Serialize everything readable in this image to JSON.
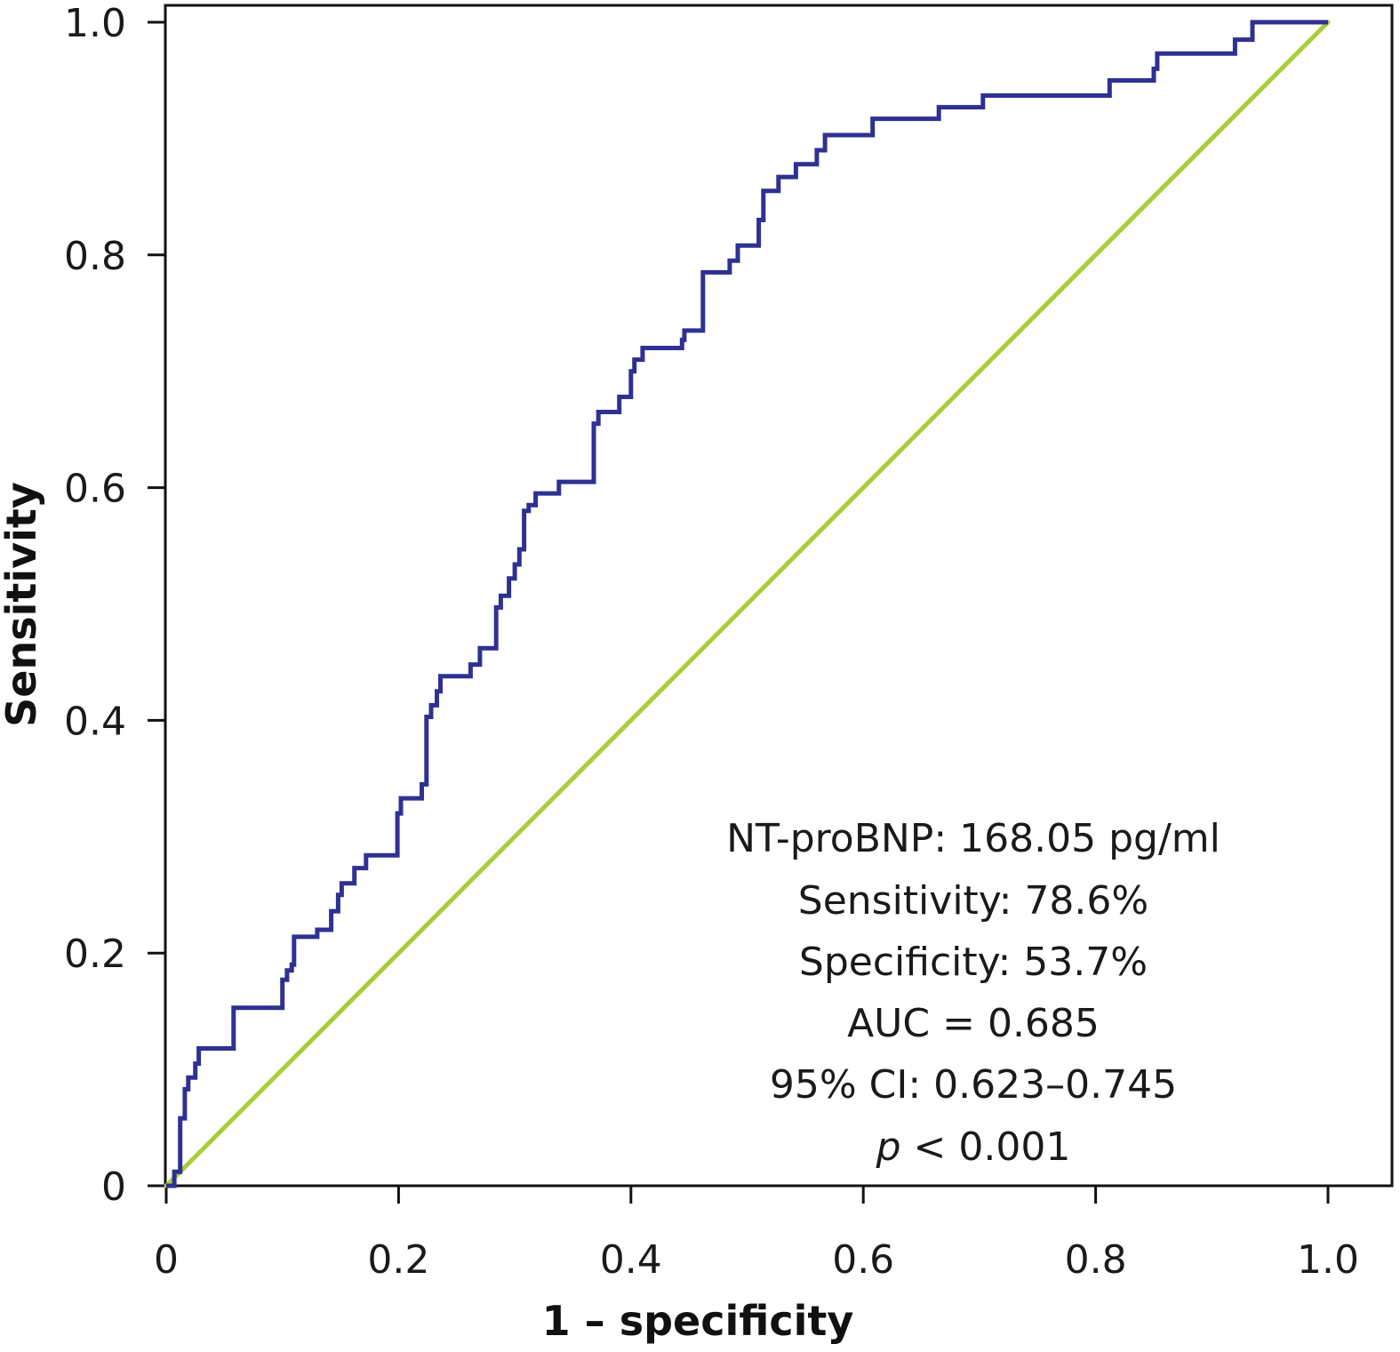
{
  "chart_data": {
    "type": "line",
    "title": "",
    "xlabel": "1 – specificity",
    "ylabel": "Sensitivity",
    "xlim": [
      0,
      1
    ],
    "ylim": [
      0,
      1
    ],
    "x_ticks": [
      0,
      0.2,
      0.4,
      0.6,
      0.8,
      1.0
    ],
    "x_tick_labels": [
      "0",
      "0.2",
      "0.4",
      "0.6",
      "0.8",
      "1.0"
    ],
    "y_ticks": [
      0,
      0.2,
      0.4,
      0.6,
      0.8,
      1.0
    ],
    "y_tick_labels": [
      "0",
      "0.2",
      "0.4",
      "0.6",
      "0.8",
      "1.0"
    ],
    "grid": false,
    "series": [
      {
        "name": "NT-proBNP ROC curve",
        "color": "#2e3192",
        "step": true,
        "points": [
          [
            0.0,
            0.0
          ],
          [
            0.007,
            0.0
          ],
          [
            0.007,
            0.012
          ],
          [
            0.012,
            0.012
          ],
          [
            0.012,
            0.058
          ],
          [
            0.016,
            0.058
          ],
          [
            0.016,
            0.083
          ],
          [
            0.019,
            0.083
          ],
          [
            0.019,
            0.093
          ],
          [
            0.025,
            0.093
          ],
          [
            0.025,
            0.105
          ],
          [
            0.028,
            0.105
          ],
          [
            0.028,
            0.118
          ],
          [
            0.058,
            0.118
          ],
          [
            0.058,
            0.153
          ],
          [
            0.1,
            0.153
          ],
          [
            0.1,
            0.177
          ],
          [
            0.104,
            0.177
          ],
          [
            0.104,
            0.185
          ],
          [
            0.108,
            0.185
          ],
          [
            0.108,
            0.19
          ],
          [
            0.11,
            0.19
          ],
          [
            0.11,
            0.214
          ],
          [
            0.13,
            0.214
          ],
          [
            0.13,
            0.22
          ],
          [
            0.142,
            0.22
          ],
          [
            0.142,
            0.236
          ],
          [
            0.148,
            0.236
          ],
          [
            0.148,
            0.25
          ],
          [
            0.151,
            0.25
          ],
          [
            0.151,
            0.26
          ],
          [
            0.162,
            0.26
          ],
          [
            0.162,
            0.273
          ],
          [
            0.172,
            0.273
          ],
          [
            0.172,
            0.284
          ],
          [
            0.199,
            0.284
          ],
          [
            0.199,
            0.32
          ],
          [
            0.202,
            0.32
          ],
          [
            0.202,
            0.333
          ],
          [
            0.22,
            0.333
          ],
          [
            0.22,
            0.345
          ],
          [
            0.224,
            0.345
          ],
          [
            0.224,
            0.403
          ],
          [
            0.228,
            0.403
          ],
          [
            0.228,
            0.413
          ],
          [
            0.233,
            0.413
          ],
          [
            0.233,
            0.425
          ],
          [
            0.236,
            0.425
          ],
          [
            0.236,
            0.438
          ],
          [
            0.262,
            0.438
          ],
          [
            0.262,
            0.448
          ],
          [
            0.27,
            0.448
          ],
          [
            0.27,
            0.462
          ],
          [
            0.284,
            0.462
          ],
          [
            0.284,
            0.497
          ],
          [
            0.288,
            0.497
          ],
          [
            0.288,
            0.507
          ],
          [
            0.295,
            0.507
          ],
          [
            0.295,
            0.522
          ],
          [
            0.3,
            0.522
          ],
          [
            0.3,
            0.534
          ],
          [
            0.304,
            0.534
          ],
          [
            0.304,
            0.547
          ],
          [
            0.308,
            0.547
          ],
          [
            0.308,
            0.58
          ],
          [
            0.312,
            0.58
          ],
          [
            0.312,
            0.585
          ],
          [
            0.318,
            0.585
          ],
          [
            0.318,
            0.595
          ],
          [
            0.338,
            0.595
          ],
          [
            0.338,
            0.605
          ],
          [
            0.368,
            0.605
          ],
          [
            0.368,
            0.655
          ],
          [
            0.372,
            0.655
          ],
          [
            0.372,
            0.665
          ],
          [
            0.39,
            0.665
          ],
          [
            0.39,
            0.678
          ],
          [
            0.4,
            0.678
          ],
          [
            0.4,
            0.7
          ],
          [
            0.403,
            0.7
          ],
          [
            0.403,
            0.71
          ],
          [
            0.41,
            0.71
          ],
          [
            0.41,
            0.72
          ],
          [
            0.444,
            0.72
          ],
          [
            0.444,
            0.727
          ],
          [
            0.446,
            0.727
          ],
          [
            0.446,
            0.735
          ],
          [
            0.462,
            0.735
          ],
          [
            0.462,
            0.785
          ],
          [
            0.485,
            0.785
          ],
          [
            0.485,
            0.795
          ],
          [
            0.492,
            0.795
          ],
          [
            0.492,
            0.808
          ],
          [
            0.51,
            0.808
          ],
          [
            0.51,
            0.83
          ],
          [
            0.514,
            0.83
          ],
          [
            0.514,
            0.855
          ],
          [
            0.527,
            0.855
          ],
          [
            0.527,
            0.867
          ],
          [
            0.542,
            0.867
          ],
          [
            0.542,
            0.878
          ],
          [
            0.56,
            0.878
          ],
          [
            0.56,
            0.89
          ],
          [
            0.567,
            0.89
          ],
          [
            0.567,
            0.903
          ],
          [
            0.608,
            0.903
          ],
          [
            0.608,
            0.917
          ],
          [
            0.665,
            0.917
          ],
          [
            0.665,
            0.927
          ],
          [
            0.703,
            0.927
          ],
          [
            0.703,
            0.937
          ],
          [
            0.812,
            0.937
          ],
          [
            0.812,
            0.95
          ],
          [
            0.85,
            0.95
          ],
          [
            0.85,
            0.96
          ],
          [
            0.853,
            0.96
          ],
          [
            0.853,
            0.973
          ],
          [
            0.92,
            0.973
          ],
          [
            0.92,
            0.985
          ],
          [
            0.935,
            0.985
          ],
          [
            0.935,
            1.0
          ],
          [
            1.0,
            1.0
          ]
        ]
      },
      {
        "name": "Reference line",
        "color": "#a6ce39",
        "step": false,
        "points": [
          [
            0,
            0
          ],
          [
            1,
            1
          ]
        ]
      }
    ],
    "annotations": {
      "line1": "NT-proBNP: 168.05 pg/ml",
      "line2": "Sensitivity: 78.6%",
      "line3": "Specificity: 53.7%",
      "line4": "AUC = 0.685",
      "line5": "95% CI: 0.623–0.745",
      "line6_p": "p",
      "line6_rest": " < 0.001"
    }
  }
}
